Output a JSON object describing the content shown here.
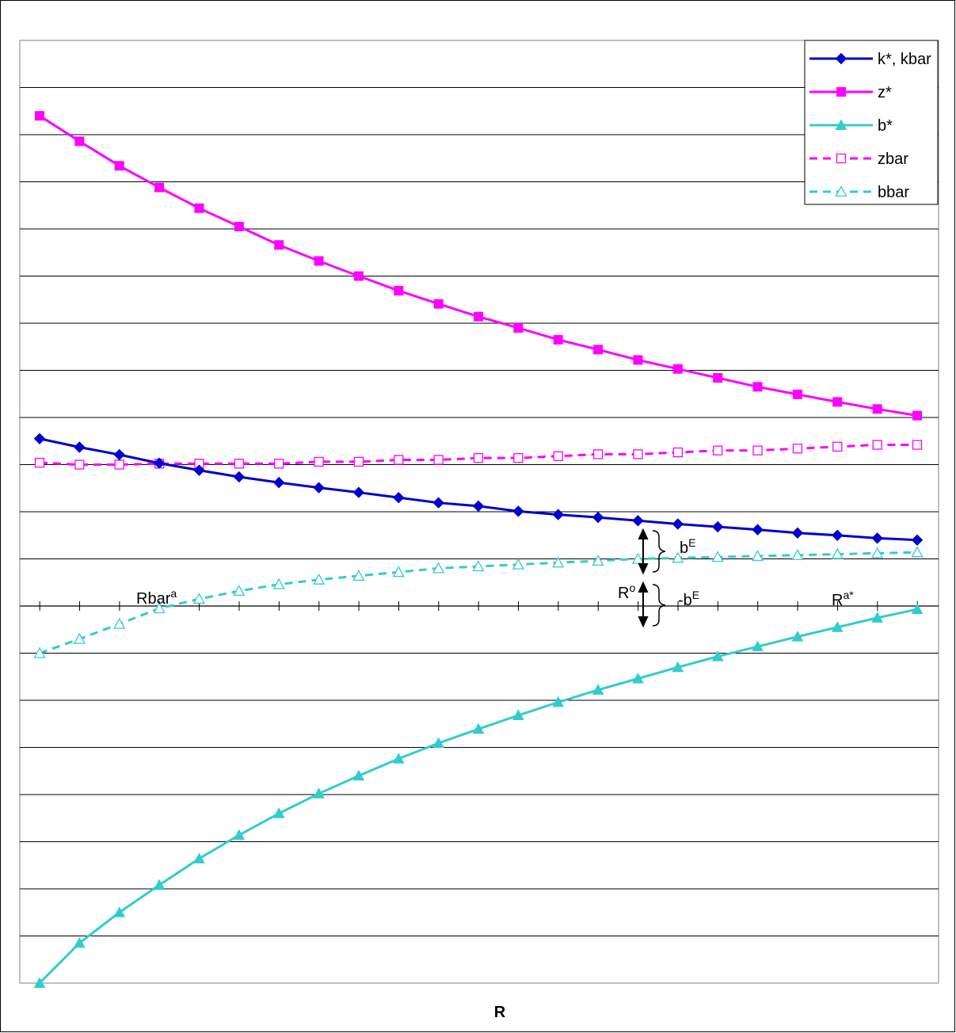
{
  "chart_data": {
    "type": "line",
    "xlabel": "R",
    "ylabel": "",
    "title": "",
    "grid": true,
    "legend_placement": "top-right",
    "x": [
      1,
      2,
      3,
      4,
      5,
      6,
      7,
      8,
      9,
      10,
      11,
      12,
      13,
      14,
      15,
      16,
      17,
      18,
      19,
      20,
      21,
      22,
      23
    ],
    "ylim": [
      -8,
      12
    ],
    "series": [
      {
        "name": "k*, kbar",
        "color": "#0000CC",
        "style": "solid",
        "marker": "diamond",
        "values": [
          3.55,
          3.37,
          3.21,
          3.03,
          2.88,
          2.74,
          2.62,
          2.51,
          2.41,
          2.3,
          2.19,
          2.12,
          2.01,
          1.94,
          1.88,
          1.81,
          1.74,
          1.68,
          1.62,
          1.55,
          1.5,
          1.44,
          1.4
        ]
      },
      {
        "name": "z*",
        "color": "#FF00FF",
        "style": "solid",
        "marker": "square",
        "values": [
          10.4,
          9.86,
          9.34,
          8.88,
          8.44,
          8.05,
          7.66,
          7.32,
          7.0,
          6.69,
          6.41,
          6.14,
          5.9,
          5.65,
          5.44,
          5.22,
          5.03,
          4.84,
          4.65,
          4.49,
          4.33,
          4.18,
          4.04
        ]
      },
      {
        "name": "b*",
        "color": "#33CCCC",
        "style": "solid",
        "marker": "triangle",
        "values": [
          -8.0,
          -7.15,
          -6.5,
          -5.92,
          -5.36,
          -4.86,
          -4.4,
          -3.98,
          -3.6,
          -3.24,
          -2.91,
          -2.61,
          -2.32,
          -2.04,
          -1.78,
          -1.54,
          -1.3,
          -1.07,
          -0.86,
          -0.65,
          -0.45,
          -0.25,
          -0.07
        ]
      },
      {
        "name": "zbar",
        "color": "#FF00FF",
        "style": "dashed",
        "marker": "square-open",
        "values": [
          3.04,
          3.0,
          3.0,
          3.02,
          3.02,
          3.02,
          3.02,
          3.06,
          3.06,
          3.1,
          3.1,
          3.14,
          3.14,
          3.18,
          3.22,
          3.22,
          3.26,
          3.3,
          3.3,
          3.34,
          3.38,
          3.42,
          3.42
        ]
      },
      {
        "name": "bbar",
        "color": "#33CCCC",
        "style": "dashed",
        "marker": "triangle-open",
        "values": [
          -1.0,
          -0.7,
          -0.38,
          -0.05,
          0.15,
          0.32,
          0.46,
          0.56,
          0.64,
          0.72,
          0.8,
          0.84,
          0.88,
          0.92,
          0.96,
          1.0,
          1.02,
          1.04,
          1.06,
          1.08,
          1.1,
          1.12,
          1.14
        ]
      }
    ],
    "annotations": {
      "rbar_a": {
        "base": "Rbar",
        "sup": "a",
        "x": 3.5
      },
      "r_o": {
        "base": "R",
        "sup": "o",
        "x": 16
      },
      "r_a_star": {
        "base": "R",
        "sup": "a*",
        "x": 21
      },
      "b_e": {
        "base": "b",
        "sup": "E",
        "x": 16
      },
      "neg_b_e": {
        "base": "-b",
        "sup": "E",
        "x": 16
      }
    }
  }
}
